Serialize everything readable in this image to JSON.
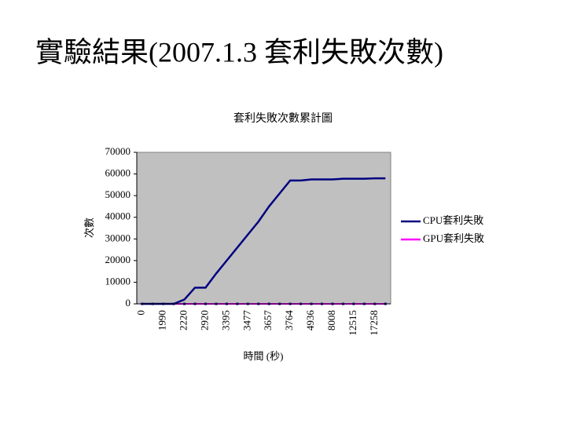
{
  "slide_title": "實驗結果(2007.1.3 套利失敗次數)",
  "chart_data": {
    "type": "line",
    "title": "套利失敗次數累計圖",
    "x_label": "時間 (秒)",
    "y_label": "次數",
    "categories": [
      "0",
      null,
      "1990",
      null,
      "2220",
      null,
      "2920",
      null,
      "3395",
      null,
      "3477",
      null,
      "3657",
      null,
      "3764",
      null,
      "4936",
      null,
      "8008",
      null,
      "12515",
      null,
      "17258",
      null
    ],
    "series": [
      {
        "name": "CPU套利失敗",
        "color": "#000080",
        "values": [
          0,
          0,
          0,
          0,
          2000,
          7500,
          7500,
          14000,
          20000,
          26000,
          32000,
          38000,
          45000,
          51000,
          57000,
          57000,
          57500,
          57500,
          57500,
          57800,
          57800,
          57800,
          58000,
          58000
        ]
      },
      {
        "name": "GPU套利失敗",
        "color": "#ff00ff",
        "values": [
          0,
          0,
          0,
          0,
          0,
          0,
          0,
          0,
          0,
          0,
          0,
          0,
          0,
          0,
          0,
          0,
          0,
          0,
          0,
          0,
          0,
          0,
          0,
          0
        ]
      }
    ],
    "ylim": [
      0,
      70000
    ],
    "yticks": [
      0,
      10000,
      20000,
      30000,
      40000,
      50000,
      60000,
      70000
    ],
    "plot_background": "#c0c0c0",
    "legend": "right"
  }
}
